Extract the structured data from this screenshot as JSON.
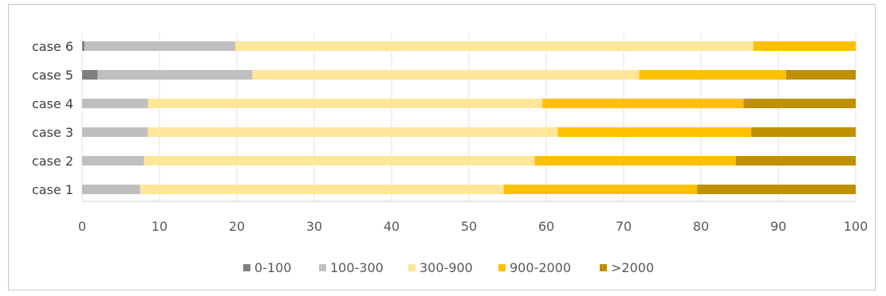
{
  "chart_data": {
    "type": "bar",
    "orientation": "horizontal",
    "stacked": true,
    "categories": [
      "case 1",
      "case 2",
      "case 3",
      "case 4",
      "case 5",
      "case 6"
    ],
    "series": [
      {
        "name": "0-100",
        "color": "#7f7f7f",
        "values": [
          0,
          0,
          0,
          0,
          2,
          0.3
        ]
      },
      {
        "name": "100-300",
        "color": "#bfbfbf",
        "values": [
          7.5,
          8,
          8.5,
          8.5,
          20,
          19.5
        ]
      },
      {
        "name": "300-900",
        "color": "#ffe699",
        "values": [
          47,
          50.5,
          53,
          51,
          50,
          67
        ]
      },
      {
        "name": "900-2000",
        "color": "#ffc000",
        "values": [
          25,
          26,
          25,
          26,
          19,
          13.2
        ]
      },
      {
        "name": ">2000",
        "color": "#bf9000",
        "values": [
          20.5,
          15.5,
          13.5,
          14.5,
          9,
          0
        ]
      }
    ],
    "x_ticks": [
      "0",
      "10",
      "20",
      "30",
      "40",
      "50",
      "60",
      "70",
      "80",
      "90",
      "100"
    ],
    "xlim": [
      0,
      100
    ],
    "grid": "vertical",
    "legend_position": "bottom"
  }
}
